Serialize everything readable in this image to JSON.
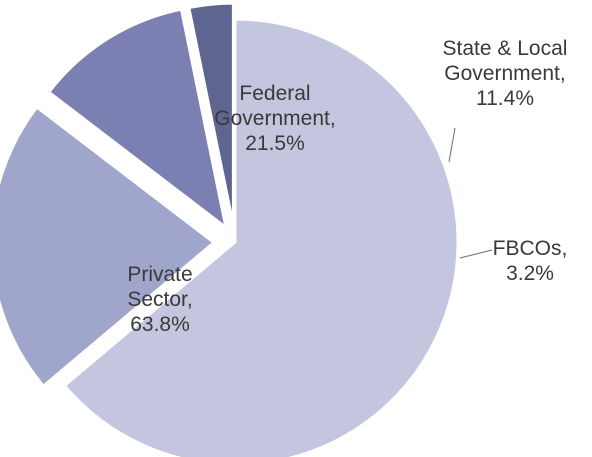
{
  "chart_data": {
    "type": "pie",
    "categories": [
      "Federal Government",
      "State & Local Government",
      "FBCOs",
      "Private Sector"
    ],
    "values": [
      21.5,
      11.4,
      3.2,
      63.8
    ],
    "value_unit": "%",
    "exploded": [
      "Federal Government",
      "State & Local Government",
      "FBCOs"
    ],
    "labels": [
      [
        "Federal",
        "Government,",
        "21.5%"
      ],
      [
        "State & Local",
        "Government,",
        "11.4%"
      ],
      [
        "FBCOs,",
        "3.2%"
      ],
      [
        "Private",
        "Sector,",
        "63.8%"
      ]
    ],
    "colors": [
      "#a0a5cc",
      "#7b7fb1",
      "#5f6591",
      "#c3c6de"
    ],
    "title": "",
    "legend": "none"
  }
}
